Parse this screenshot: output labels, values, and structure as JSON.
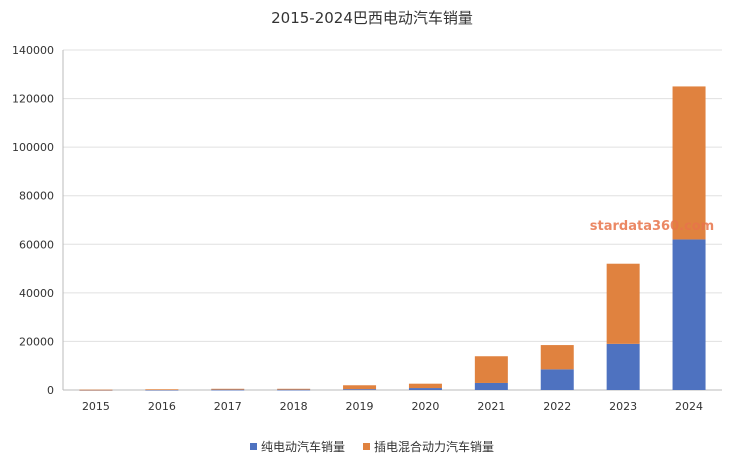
{
  "chart_data": {
    "type": "bar",
    "stacked": true,
    "title": "2015-2024巴西电动汽车销量",
    "categories": [
      "2015",
      "2016",
      "2017",
      "2018",
      "2019",
      "2020",
      "2021",
      "2022",
      "2023",
      "2024"
    ],
    "series": [
      {
        "name": "纯电动汽车销量",
        "color": "#4e72c0",
        "values": [
          50,
          100,
          150,
          150,
          350,
          800,
          2900,
          8500,
          19000,
          62000
        ]
      },
      {
        "name": "插电混合动力汽车销量",
        "color": "#e0823f",
        "values": [
          100,
          200,
          350,
          350,
          1600,
          1800,
          11000,
          10000,
          33000,
          63000
        ]
      }
    ],
    "ylim": [
      0,
      140000
    ],
    "yticks": [
      0,
      20000,
      40000,
      60000,
      80000,
      100000,
      120000,
      140000
    ],
    "grid": true,
    "legend": "bottom-center",
    "watermark": "stardata360.com"
  }
}
